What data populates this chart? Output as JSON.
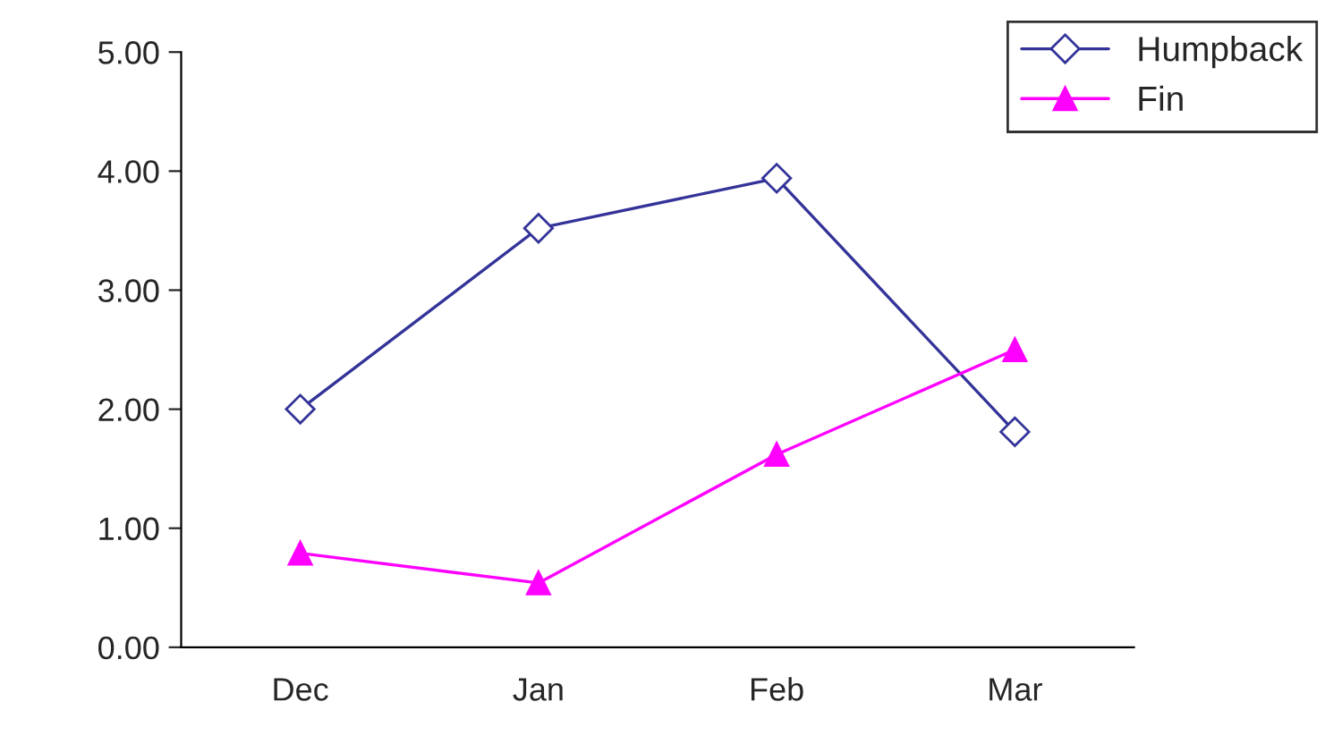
{
  "chart_data": {
    "type": "line",
    "categories": [
      "Dec",
      "Jan",
      "Feb",
      "Mar"
    ],
    "series": [
      {
        "name": "Humpback",
        "color": "#333399",
        "values": [
          2.0,
          3.52,
          3.94,
          1.81
        ],
        "marker": "diamond"
      },
      {
        "name": "Fin",
        "color": "#ff00ff",
        "values": [
          0.79,
          0.54,
          1.62,
          2.5
        ],
        "marker": "triangle"
      }
    ],
    "ylim": [
      0,
      5
    ],
    "yticks": [
      {
        "value": 0,
        "label": "0.00"
      },
      {
        "value": 1,
        "label": "1.00"
      },
      {
        "value": 2,
        "label": "2.00"
      },
      {
        "value": 3,
        "label": "3.00"
      },
      {
        "value": 4,
        "label": "4.00"
      },
      {
        "value": 5,
        "label": "5.00"
      }
    ],
    "grid": false,
    "legend": "top right",
    "line_style": "solid"
  }
}
